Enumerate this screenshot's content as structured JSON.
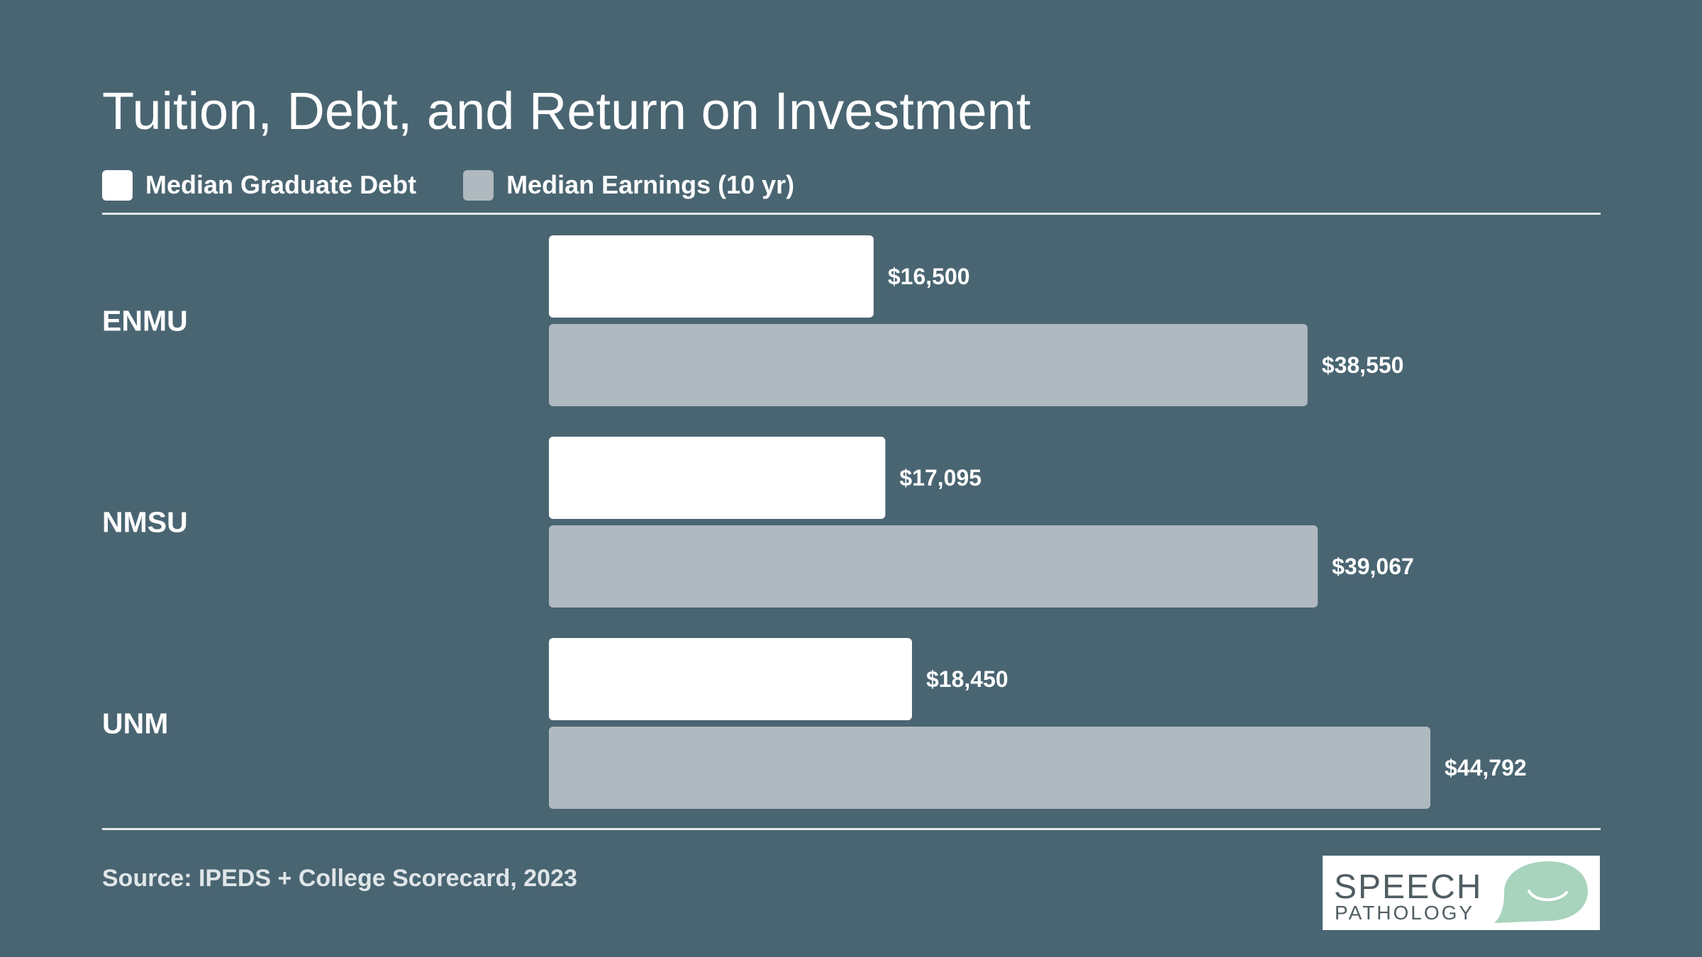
{
  "title": "Tuition, Debt, and Return on Investment",
  "legend": [
    {
      "label": "Median Graduate Debt",
      "color": "#ffffff"
    },
    {
      "label": "Median Earnings (10 yr)",
      "color": "#afb9bf"
    }
  ],
  "source": "Source: IPEDS + College Scorecard, 2023",
  "logo": {
    "line1": "SPEECH",
    "line2": "PATHOLOGY",
    "text_color": "#4e5d61",
    "accent": "#a8d3bd"
  },
  "colors": {
    "background": "#4a6572",
    "rule": "#e3e8ea"
  },
  "chart_data": {
    "type": "bar",
    "orientation": "horizontal",
    "categories": [
      "ENMU",
      "NMSU",
      "UNM"
    ],
    "series": [
      {
        "name": "Median Graduate Debt",
        "values": [
          16500,
          17095,
          18450
        ],
        "labels": [
          "$16,500",
          "$17,095",
          "$18,450"
        ],
        "color": "#ffffff"
      },
      {
        "name": "Median Earnings (10 yr)",
        "values": [
          38550,
          39067,
          44792
        ],
        "labels": [
          "$38,550",
          "$39,067",
          "$44,792"
        ],
        "color": "#afb9bf"
      }
    ],
    "xlim": [
      0,
      44792
    ],
    "grid": false,
    "legend_position": "top-left"
  }
}
